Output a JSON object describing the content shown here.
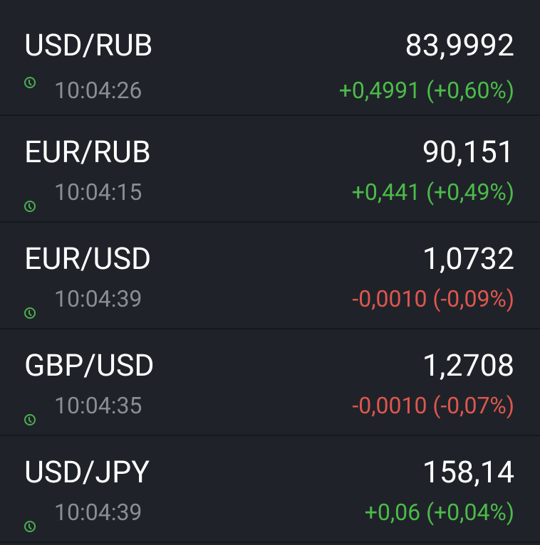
{
  "colors": {
    "background": "#1f2329",
    "up": "#4cbb4a",
    "down": "#e0564f",
    "clock": "#4caf50"
  },
  "quotes": [
    {
      "pair": "USD/RUB",
      "price": "83,9992",
      "time": "10:04:26",
      "change": "+0,4991 (+0,60%)",
      "direction": "up"
    },
    {
      "pair": "EUR/RUB",
      "price": "90,151",
      "time": "10:04:15",
      "change": "+0,441 (+0,49%)",
      "direction": "up"
    },
    {
      "pair": "EUR/USD",
      "price": "1,0732",
      "time": "10:04:39",
      "change": "-0,0010 (-0,09%)",
      "direction": "down"
    },
    {
      "pair": "GBP/USD",
      "price": "1,2708",
      "time": "10:04:35",
      "change": "-0,0010 (-0,07%)",
      "direction": "down"
    },
    {
      "pair": "USD/JPY",
      "price": "158,14",
      "time": "10:04:39",
      "change": "+0,06 (+0,04%)",
      "direction": "up"
    }
  ]
}
